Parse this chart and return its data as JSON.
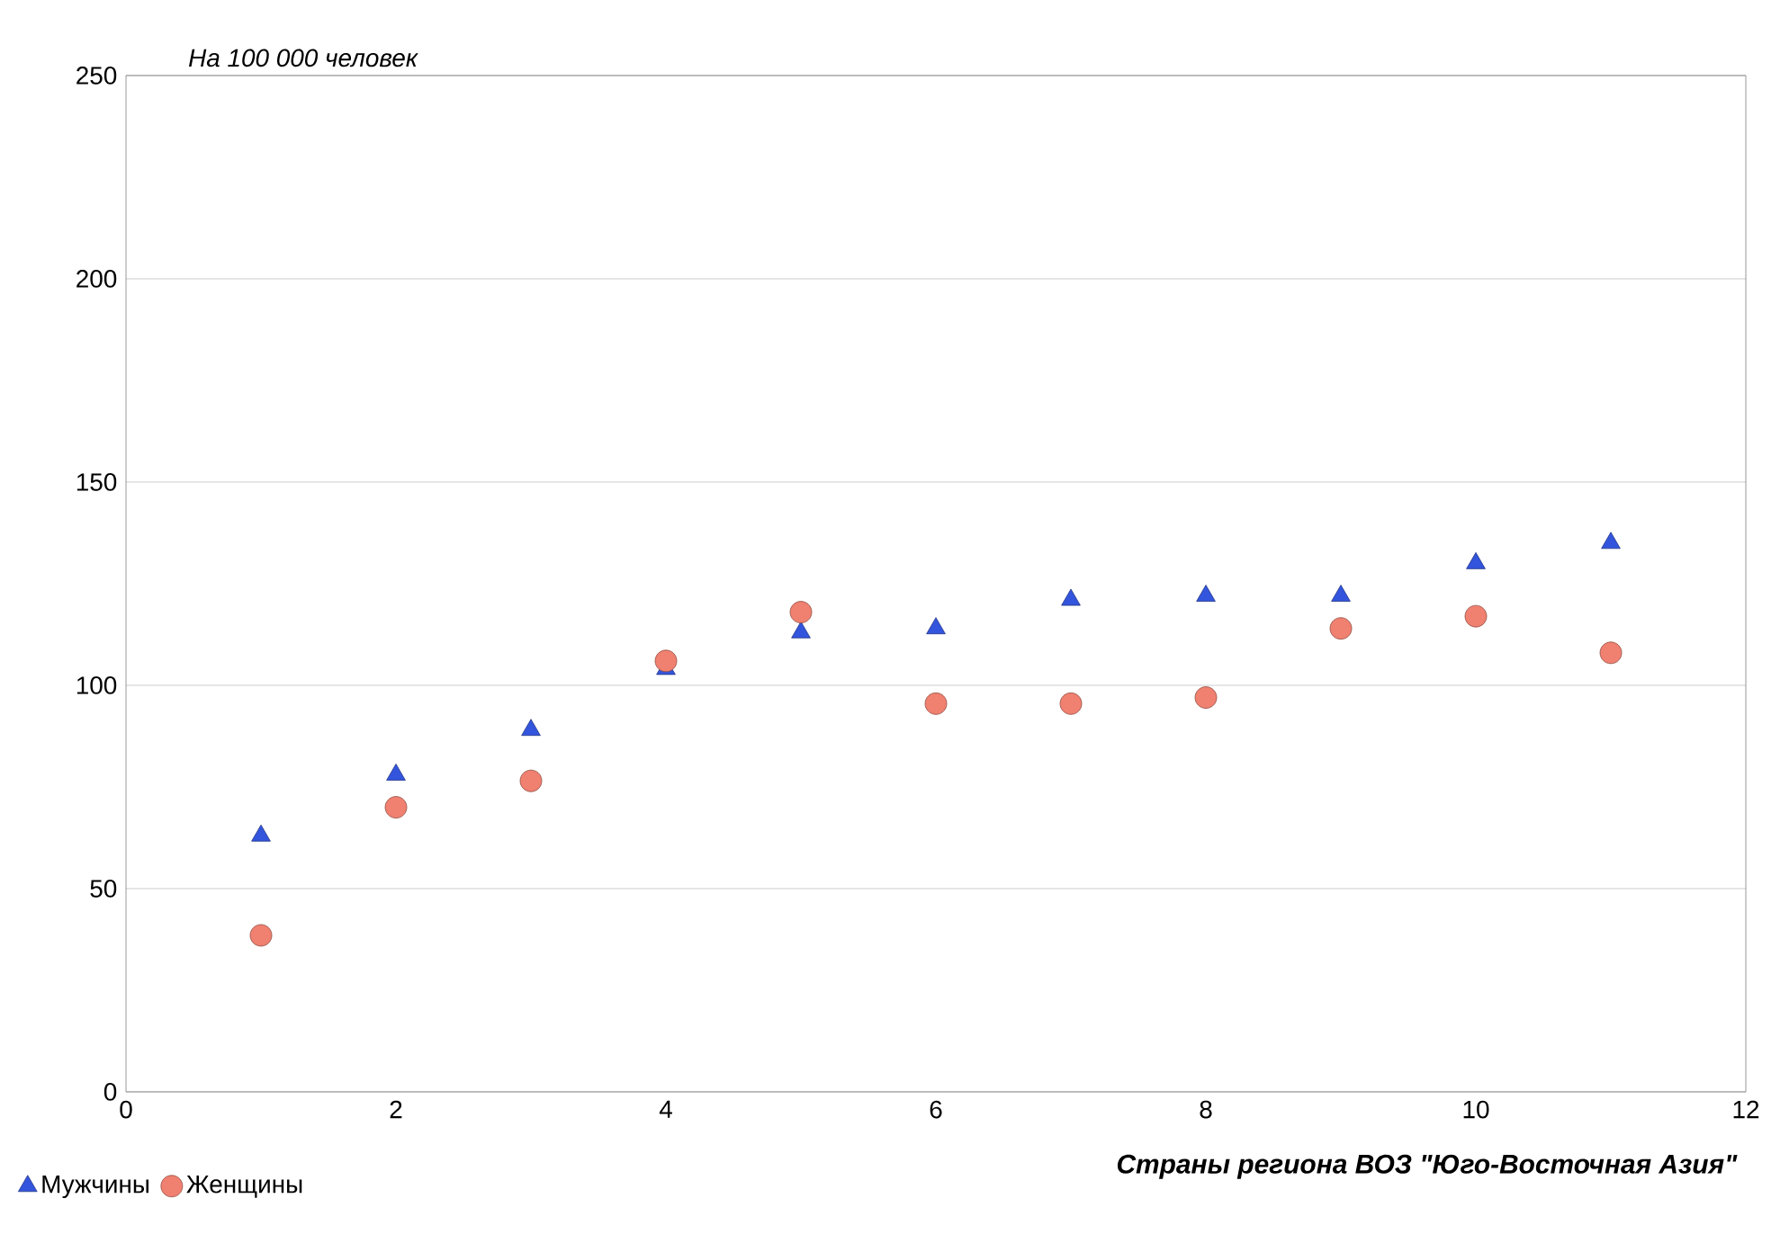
{
  "chart_data": {
    "type": "scatter",
    "ylabel": "На 100 000 человек",
    "xlabel": "Страны региона ВОЗ \"Юго-Восточная Азия\"",
    "x": [
      1,
      2,
      3,
      4,
      5,
      6,
      7,
      8,
      9,
      10,
      11
    ],
    "series": [
      {
        "name": "Мужчины",
        "color": "#3355dd",
        "marker": "triangle",
        "values": [
          63,
          78,
          89,
          104,
          113,
          114,
          121,
          122,
          122,
          130,
          135
        ]
      },
      {
        "name": "Женщины",
        "color": "#f08070",
        "marker": "circle",
        "values": [
          38.5,
          70,
          76.5,
          106,
          118,
          95.5,
          95.5,
          97,
          114,
          117,
          108
        ]
      }
    ],
    "xlim": [
      0,
      12
    ],
    "xticks": [
      0,
      2,
      4,
      6,
      8,
      10,
      12
    ],
    "ylim": [
      0,
      250
    ],
    "yticks": [
      0,
      50,
      100,
      150,
      200,
      250
    ],
    "grid": "y",
    "legend": "bottom left"
  }
}
